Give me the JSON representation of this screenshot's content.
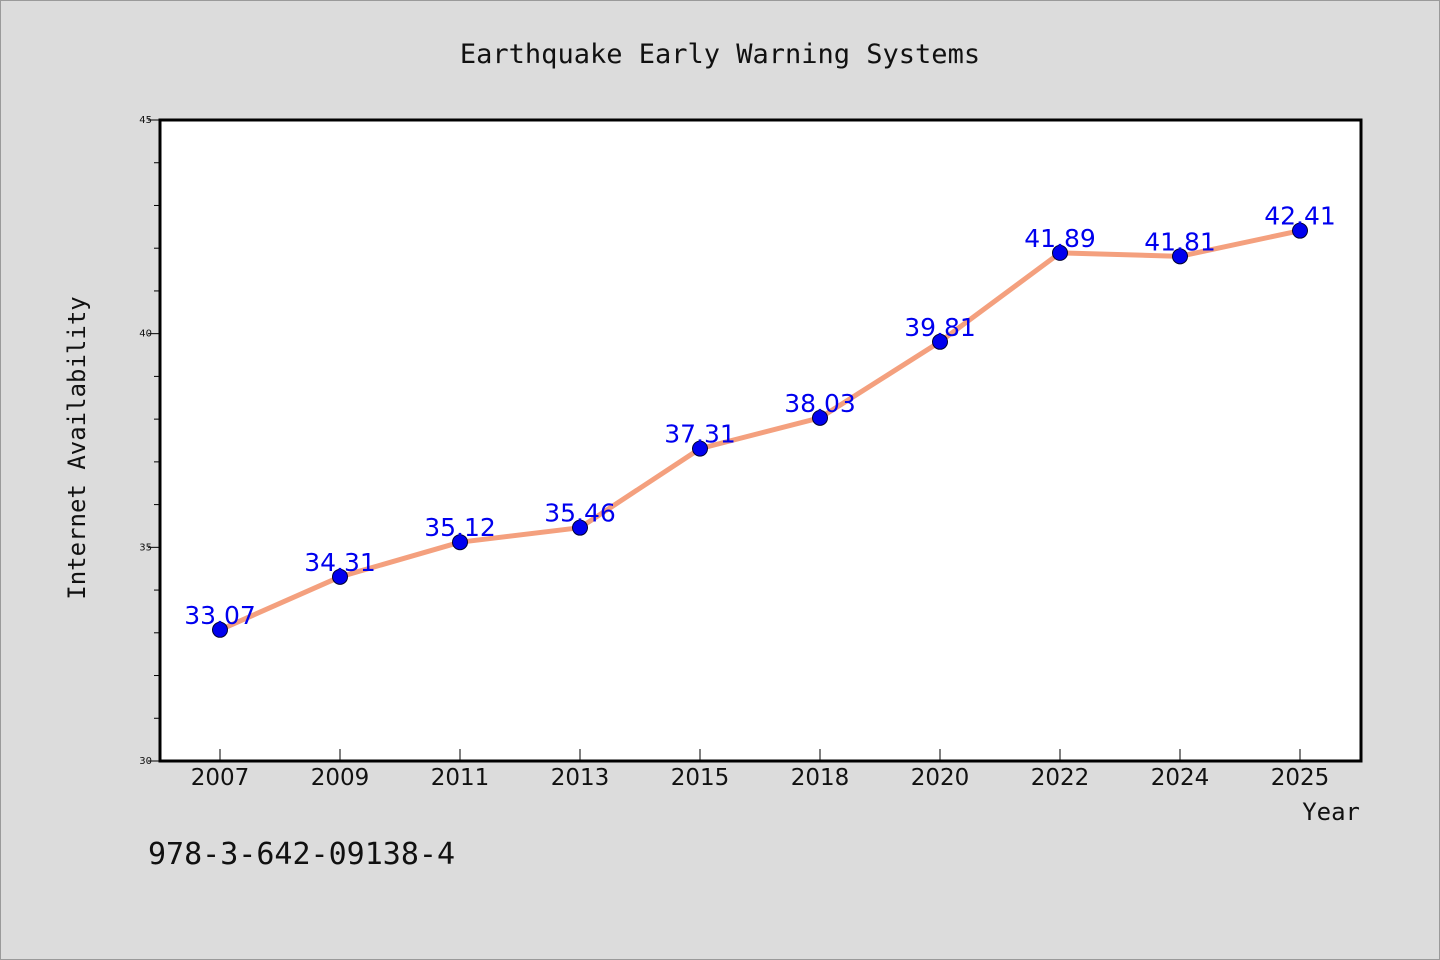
{
  "chart_data": {
    "type": "line",
    "title": "Earthquake Early Warning Systems",
    "xlabel": "Year",
    "ylabel": "Internet Availability",
    "categories": [
      "2007",
      "2009",
      "2011",
      "2013",
      "2015",
      "2018",
      "2020",
      "2022",
      "2024",
      "2025"
    ],
    "series": [
      {
        "values": [
          33.07,
          34.31,
          35.12,
          35.46,
          37.31,
          38.03,
          39.81,
          41.89,
          41.81,
          42.41
        ],
        "data_labels": [
          "33.07",
          "34.31",
          "35.12",
          "35.46",
          "37.31",
          "38.03",
          "39.81",
          "41.89",
          "41.81",
          "42.41"
        ]
      }
    ],
    "ylim": [
      30,
      45
    ],
    "yticks": [
      "30",
      "35",
      "40",
      "45"
    ],
    "grid": false,
    "legend": "none",
    "line_color": "#f4a07e",
    "marker_color": "#0000ee"
  },
  "footer": {
    "isbn": "978-3-642-09138-4"
  },
  "colors": {
    "background": "#dcdcdc",
    "plot_background": "#ffffff",
    "axis": "#000000"
  }
}
